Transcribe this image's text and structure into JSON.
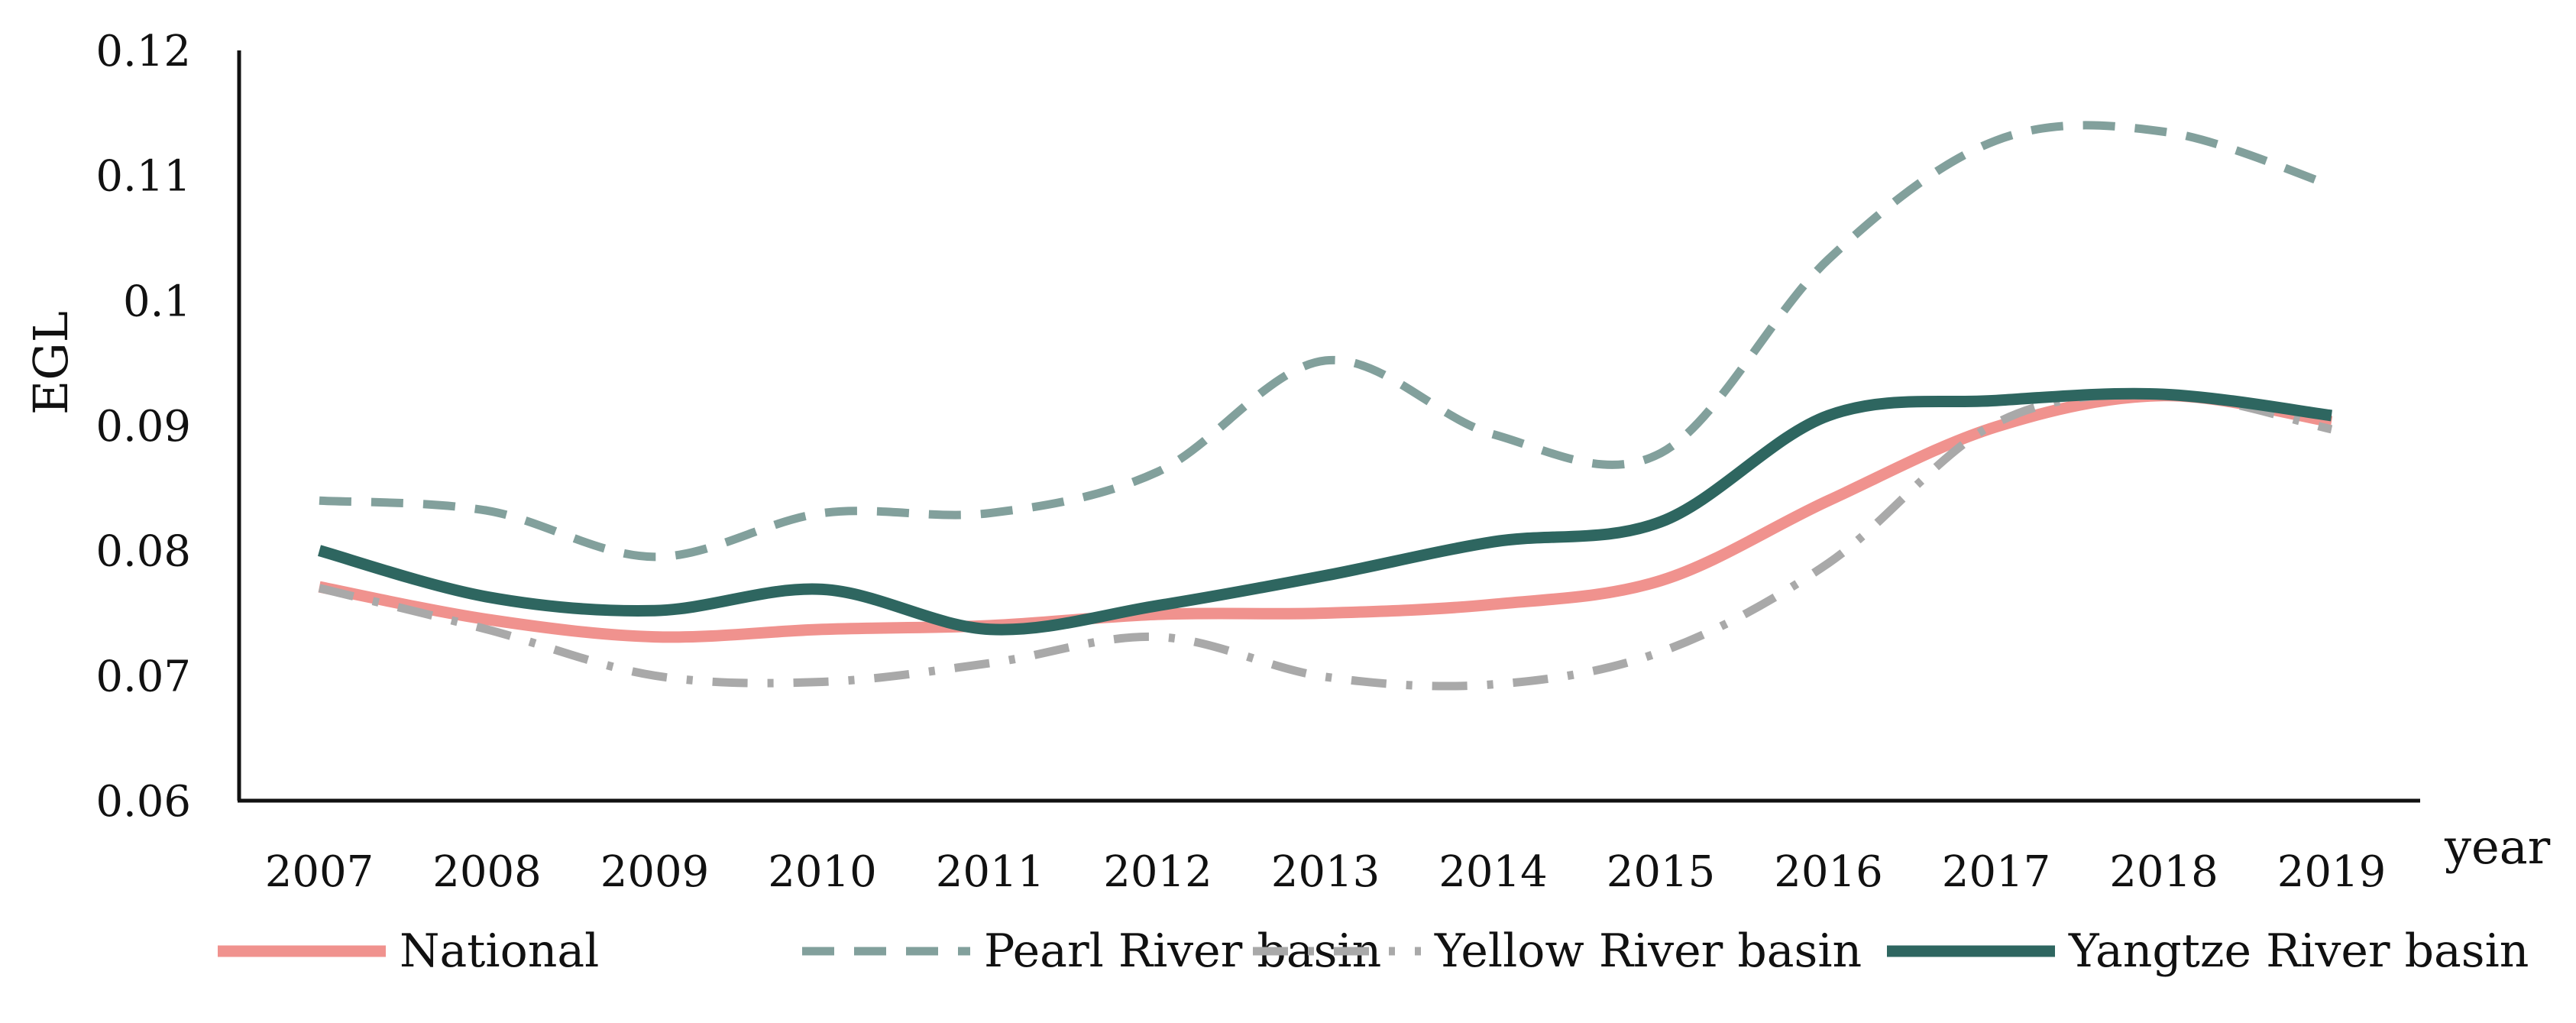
{
  "chart_data": {
    "type": "line",
    "title": "",
    "xlabel": "year",
    "ylabel": "EGL",
    "ylim": [
      0.06,
      0.12
    ],
    "y_ticks": [
      "0.06",
      "0.07",
      "0.08",
      "0.09",
      "0.1",
      "0.11",
      "0.12"
    ],
    "y_tick_values": [
      0.06,
      0.07,
      0.08,
      0.09,
      0.1,
      0.11,
      0.12
    ],
    "categories": [
      "2007",
      "2008",
      "2009",
      "2010",
      "2011",
      "2012",
      "2013",
      "2014",
      "2015",
      "2016",
      "2017",
      "2018",
      "2019"
    ],
    "grid": false,
    "legend_position": "bottom",
    "series": [
      {
        "name": "National",
        "color": "#f0928e",
        "line_style": "solid",
        "values": [
          0.0771,
          0.0745,
          0.0731,
          0.0737,
          0.074,
          0.0749,
          0.075,
          0.0757,
          0.0776,
          0.084,
          0.0899,
          0.0924,
          0.0903
        ]
      },
      {
        "name": "Pearl River basin",
        "color": "#82a09c",
        "line_style": "dashed",
        "values": [
          0.084,
          0.0832,
          0.0795,
          0.083,
          0.083,
          0.0863,
          0.0952,
          0.0893,
          0.0878,
          0.1033,
          0.1128,
          0.1135,
          0.1092
        ]
      },
      {
        "name": "Yellow River basin",
        "color": "#a9a9a9",
        "line_style": "dash-dot",
        "values": [
          0.077,
          0.0737,
          0.07,
          0.0695,
          0.071,
          0.0731,
          0.0699,
          0.0693,
          0.0719,
          0.079,
          0.0902,
          0.0925,
          0.0897
        ]
      },
      {
        "name": "Yangtze River basin",
        "color": "#2e6660",
        "line_style": "solid",
        "values": [
          0.08,
          0.0763,
          0.0752,
          0.0769,
          0.0737,
          0.0756,
          0.078,
          0.0807,
          0.0823,
          0.0908,
          0.092,
          0.0925,
          0.0908
        ]
      }
    ]
  }
}
